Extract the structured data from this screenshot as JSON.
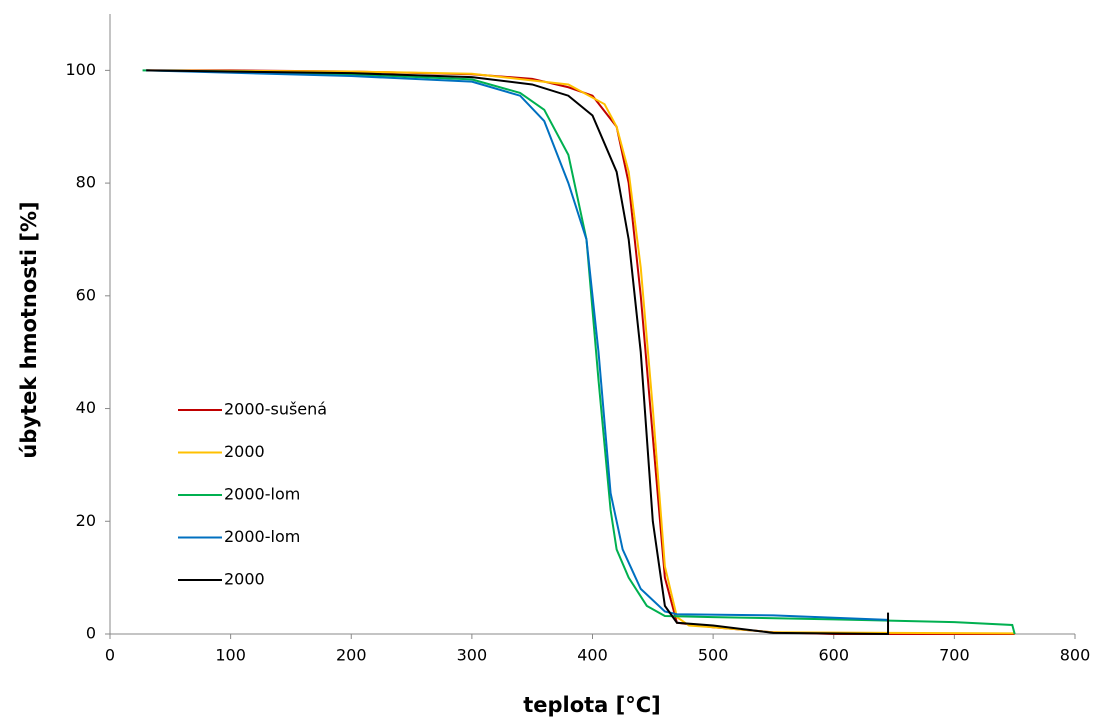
{
  "chart_data": {
    "type": "line",
    "xlabel": "teplota [°C]",
    "ylabel": "úbytek hmotnosti [%]",
    "xlim": [
      0,
      800
    ],
    "xticks": [
      0,
      100,
      200,
      300,
      400,
      500,
      600,
      700,
      800
    ],
    "ylim": [
      0,
      110
    ],
    "yticks": [
      0,
      20,
      40,
      60,
      80,
      100
    ],
    "grid": false,
    "legend": "left",
    "series": [
      {
        "name": "2000-sušená",
        "color": "#c00000",
        "x": [
          30,
          100,
          200,
          300,
          350,
          380,
          400,
          420,
          430,
          440,
          450,
          460,
          470,
          500,
          550,
          600,
          750
        ],
        "values": [
          100,
          100,
          99.8,
          99.3,
          98.5,
          97,
          95.5,
          90,
          80,
          60,
          35,
          10,
          2,
          1.2,
          0.3,
          0,
          0
        ]
      },
      {
        "name": "2000",
        "color": "#ffc000",
        "x": [
          30,
          200,
          300,
          380,
          410,
          420,
          430,
          440,
          450,
          460,
          470,
          480,
          500,
          550,
          750
        ],
        "values": [
          100,
          99.8,
          99.4,
          97.5,
          94,
          90,
          82,
          65,
          40,
          12,
          3,
          1.5,
          1.2,
          0.3,
          0.1
        ]
      },
      {
        "name": "2000-lom",
        "color": "#00b050",
        "x": [
          27,
          100,
          200,
          300,
          340,
          360,
          380,
          395,
          405,
          415,
          420,
          430,
          445,
          460,
          500,
          600,
          700,
          748,
          750
        ],
        "values": [
          100,
          99.8,
          99.3,
          98.4,
          96,
          93,
          85,
          70,
          45,
          22,
          15,
          10,
          5,
          3.2,
          3,
          2.6,
          2.1,
          1.6,
          0
        ]
      },
      {
        "name": "2000-lom",
        "color": "#0070c0",
        "x": [
          30,
          200,
          300,
          340,
          360,
          380,
          395,
          405,
          415,
          425,
          440,
          460,
          470,
          550,
          645
        ],
        "values": [
          100,
          99,
          98,
          95.5,
          91,
          80,
          70,
          50,
          25,
          15,
          8,
          4,
          3.5,
          3.3,
          2.5
        ]
      },
      {
        "name": "2000",
        "color": "#000000",
        "x": [
          30,
          200,
          300,
          350,
          380,
          400,
          420,
          430,
          440,
          450,
          460,
          470,
          500,
          550,
          645,
          645
        ],
        "values": [
          100,
          99.5,
          98.8,
          97.5,
          95.5,
          92,
          82,
          70,
          50,
          20,
          5,
          2,
          1.5,
          0.2,
          0,
          3.8
        ]
      }
    ]
  }
}
